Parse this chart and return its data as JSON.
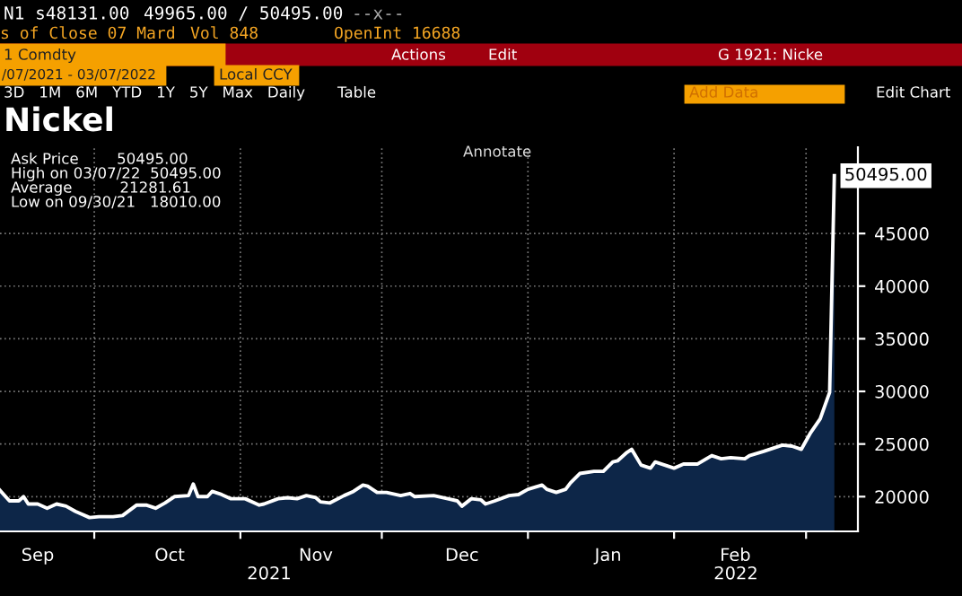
{
  "chart_data": {
    "type": "area",
    "title": "Nickel",
    "annotations": [
      "N1 s48131.00",
      "49965.00 / 50495.00",
      "--x--",
      "s of Close 07 Mard",
      "Vol 848",
      "OpenInt 16688",
      "1 Comdty",
      "Actions",
      "Edit",
      "G 1921: Nicke",
      "/07/2021 - 03/07/2022",
      "Local CCY",
      "3D   1M   6M   YTD   1Y   5Y   Max   Daily",
      "Table",
      "Add Data",
      "Edit Chart",
      "Annotate",
      "Ask Price        50495.00",
      "High on 03/07/22  50495.00",
      "Average          21281.61",
      "Low on 09/30/21   18010.00",
      "2021",
      "2022"
    ],
    "x": [
      "2021-09-11",
      "2021-09-13",
      "2021-09-15",
      "2021-09-16",
      "2021-09-17",
      "2021-09-19",
      "2021-09-21",
      "2021-09-23",
      "2021-09-25",
      "2021-09-27",
      "2021-09-30",
      "2021-10-02",
      "2021-10-05",
      "2021-10-07",
      "2021-10-10",
      "2021-10-12",
      "2021-10-14",
      "2021-10-16",
      "2021-10-18",
      "2021-10-21",
      "2021-10-22",
      "2021-10-23",
      "2021-10-25",
      "2021-10-26",
      "2021-10-28",
      "2021-10-30",
      "2021-11-02",
      "2021-11-05",
      "2021-11-06",
      "2021-11-09",
      "2021-11-11",
      "2021-11-13",
      "2021-11-15",
      "2021-11-17",
      "2021-11-18",
      "2021-11-20",
      "2021-11-23",
      "2021-11-25",
      "2021-11-27",
      "2021-11-28",
      "2021-11-30",
      "2021-12-02",
      "2021-12-05",
      "2021-12-07",
      "2021-12-08",
      "2021-12-12",
      "2021-12-15",
      "2021-12-17",
      "2021-12-18",
      "2021-12-20",
      "2021-12-22",
      "2021-12-23",
      "2021-12-25",
      "2021-12-28",
      "2021-12-30",
      "2022-01-01",
      "2022-01-04",
      "2022-01-05",
      "2022-01-07",
      "2022-01-09",
      "2022-01-10",
      "2022-01-12",
      "2022-01-15",
      "2022-01-17",
      "2022-01-19",
      "2022-01-20",
      "2022-01-22",
      "2022-01-23",
      "2022-01-25",
      "2022-01-27",
      "2022-01-28",
      "2022-01-30",
      "2022-02-01",
      "2022-02-03",
      "2022-02-06",
      "2022-02-09",
      "2022-02-11",
      "2022-02-13",
      "2022-02-16",
      "2022-02-17",
      "2022-02-20",
      "2022-02-24",
      "2022-02-26",
      "2022-02-28",
      "2022-03-02",
      "2022-03-04",
      "2022-03-06",
      "2022-03-07"
    ],
    "series": [
      {
        "color": "#0d2648",
        "values": [
          20600,
          19600,
          19600,
          20000,
          19300,
          19300,
          18900,
          19300,
          19100,
          18600,
          18010,
          18100,
          18100,
          18200,
          19200,
          19200,
          18900,
          19400,
          20000,
          20100,
          21200,
          20000,
          20000,
          20500,
          20200,
          19800,
          19800,
          19200,
          19300,
          19800,
          19900,
          19800,
          20100,
          19900,
          19500,
          19400,
          20100,
          20500,
          21100,
          21000,
          20400,
          20400,
          20100,
          20300,
          20000,
          20100,
          19800,
          19600,
          19100,
          19800,
          19700,
          19300,
          19600,
          20100,
          20200,
          20700,
          21100,
          20700,
          20400,
          20700,
          21300,
          22200,
          22400,
          22400,
          23300,
          23400,
          24200,
          24500,
          23000,
          22700,
          23300,
          23000,
          22700,
          23100,
          23100,
          23900,
          23600,
          23700,
          23600,
          23900,
          24300,
          24900,
          24800,
          24500,
          26100,
          27400,
          29900,
          50495
        ],
        "value_labels": [
          null,
          null,
          null,
          null,
          null,
          null,
          null,
          null,
          null,
          null,
          null,
          null,
          null,
          null,
          null,
          null,
          null,
          null,
          null,
          null,
          null,
          null,
          null,
          null,
          null,
          null,
          null,
          null,
          null,
          null,
          null,
          null,
          null,
          null,
          null,
          null,
          null,
          null,
          null,
          null,
          null,
          null,
          null,
          null,
          null,
          null,
          null,
          null,
          null,
          null,
          null,
          null,
          null,
          null,
          null,
          null,
          null,
          null,
          null,
          null,
          null,
          null,
          null,
          null,
          null,
          null,
          null,
          null,
          null,
          null,
          null,
          null,
          null,
          null,
          null,
          null,
          null,
          null,
          null,
          null,
          null,
          null,
          null,
          null,
          null,
          null,
          null,
          "50495.00"
        ]
      }
    ],
    "xlim": [
      "2021-09-11",
      "2022-03-12"
    ],
    "xticks": [
      {
        "value": "2021-09-19",
        "label": "Sep"
      },
      {
        "value": "2021-10-01",
        "label": null
      },
      {
        "value": "2021-10-17",
        "label": "Oct"
      },
      {
        "value": "2021-11-01",
        "label": null
      },
      {
        "value": "2021-11-17",
        "label": "Nov"
      },
      {
        "value": "2021-12-01",
        "label": null
      },
      {
        "value": "2021-12-18",
        "label": "Dec"
      },
      {
        "value": "2022-01-01",
        "label": null
      },
      {
        "value": "2022-01-18",
        "label": "Jan"
      },
      {
        "value": "2022-02-01",
        "label": null
      },
      {
        "value": "2022-02-14",
        "label": "Feb"
      },
      {
        "value": "2022-03-01",
        "label": null
      }
    ],
    "ylim": [
      16700,
      53200
    ],
    "yticks": [
      20000,
      25000,
      30000,
      35000,
      40000,
      45000
    ],
    "grid": true,
    "line_style": "solid",
    "marker": "none"
  }
}
